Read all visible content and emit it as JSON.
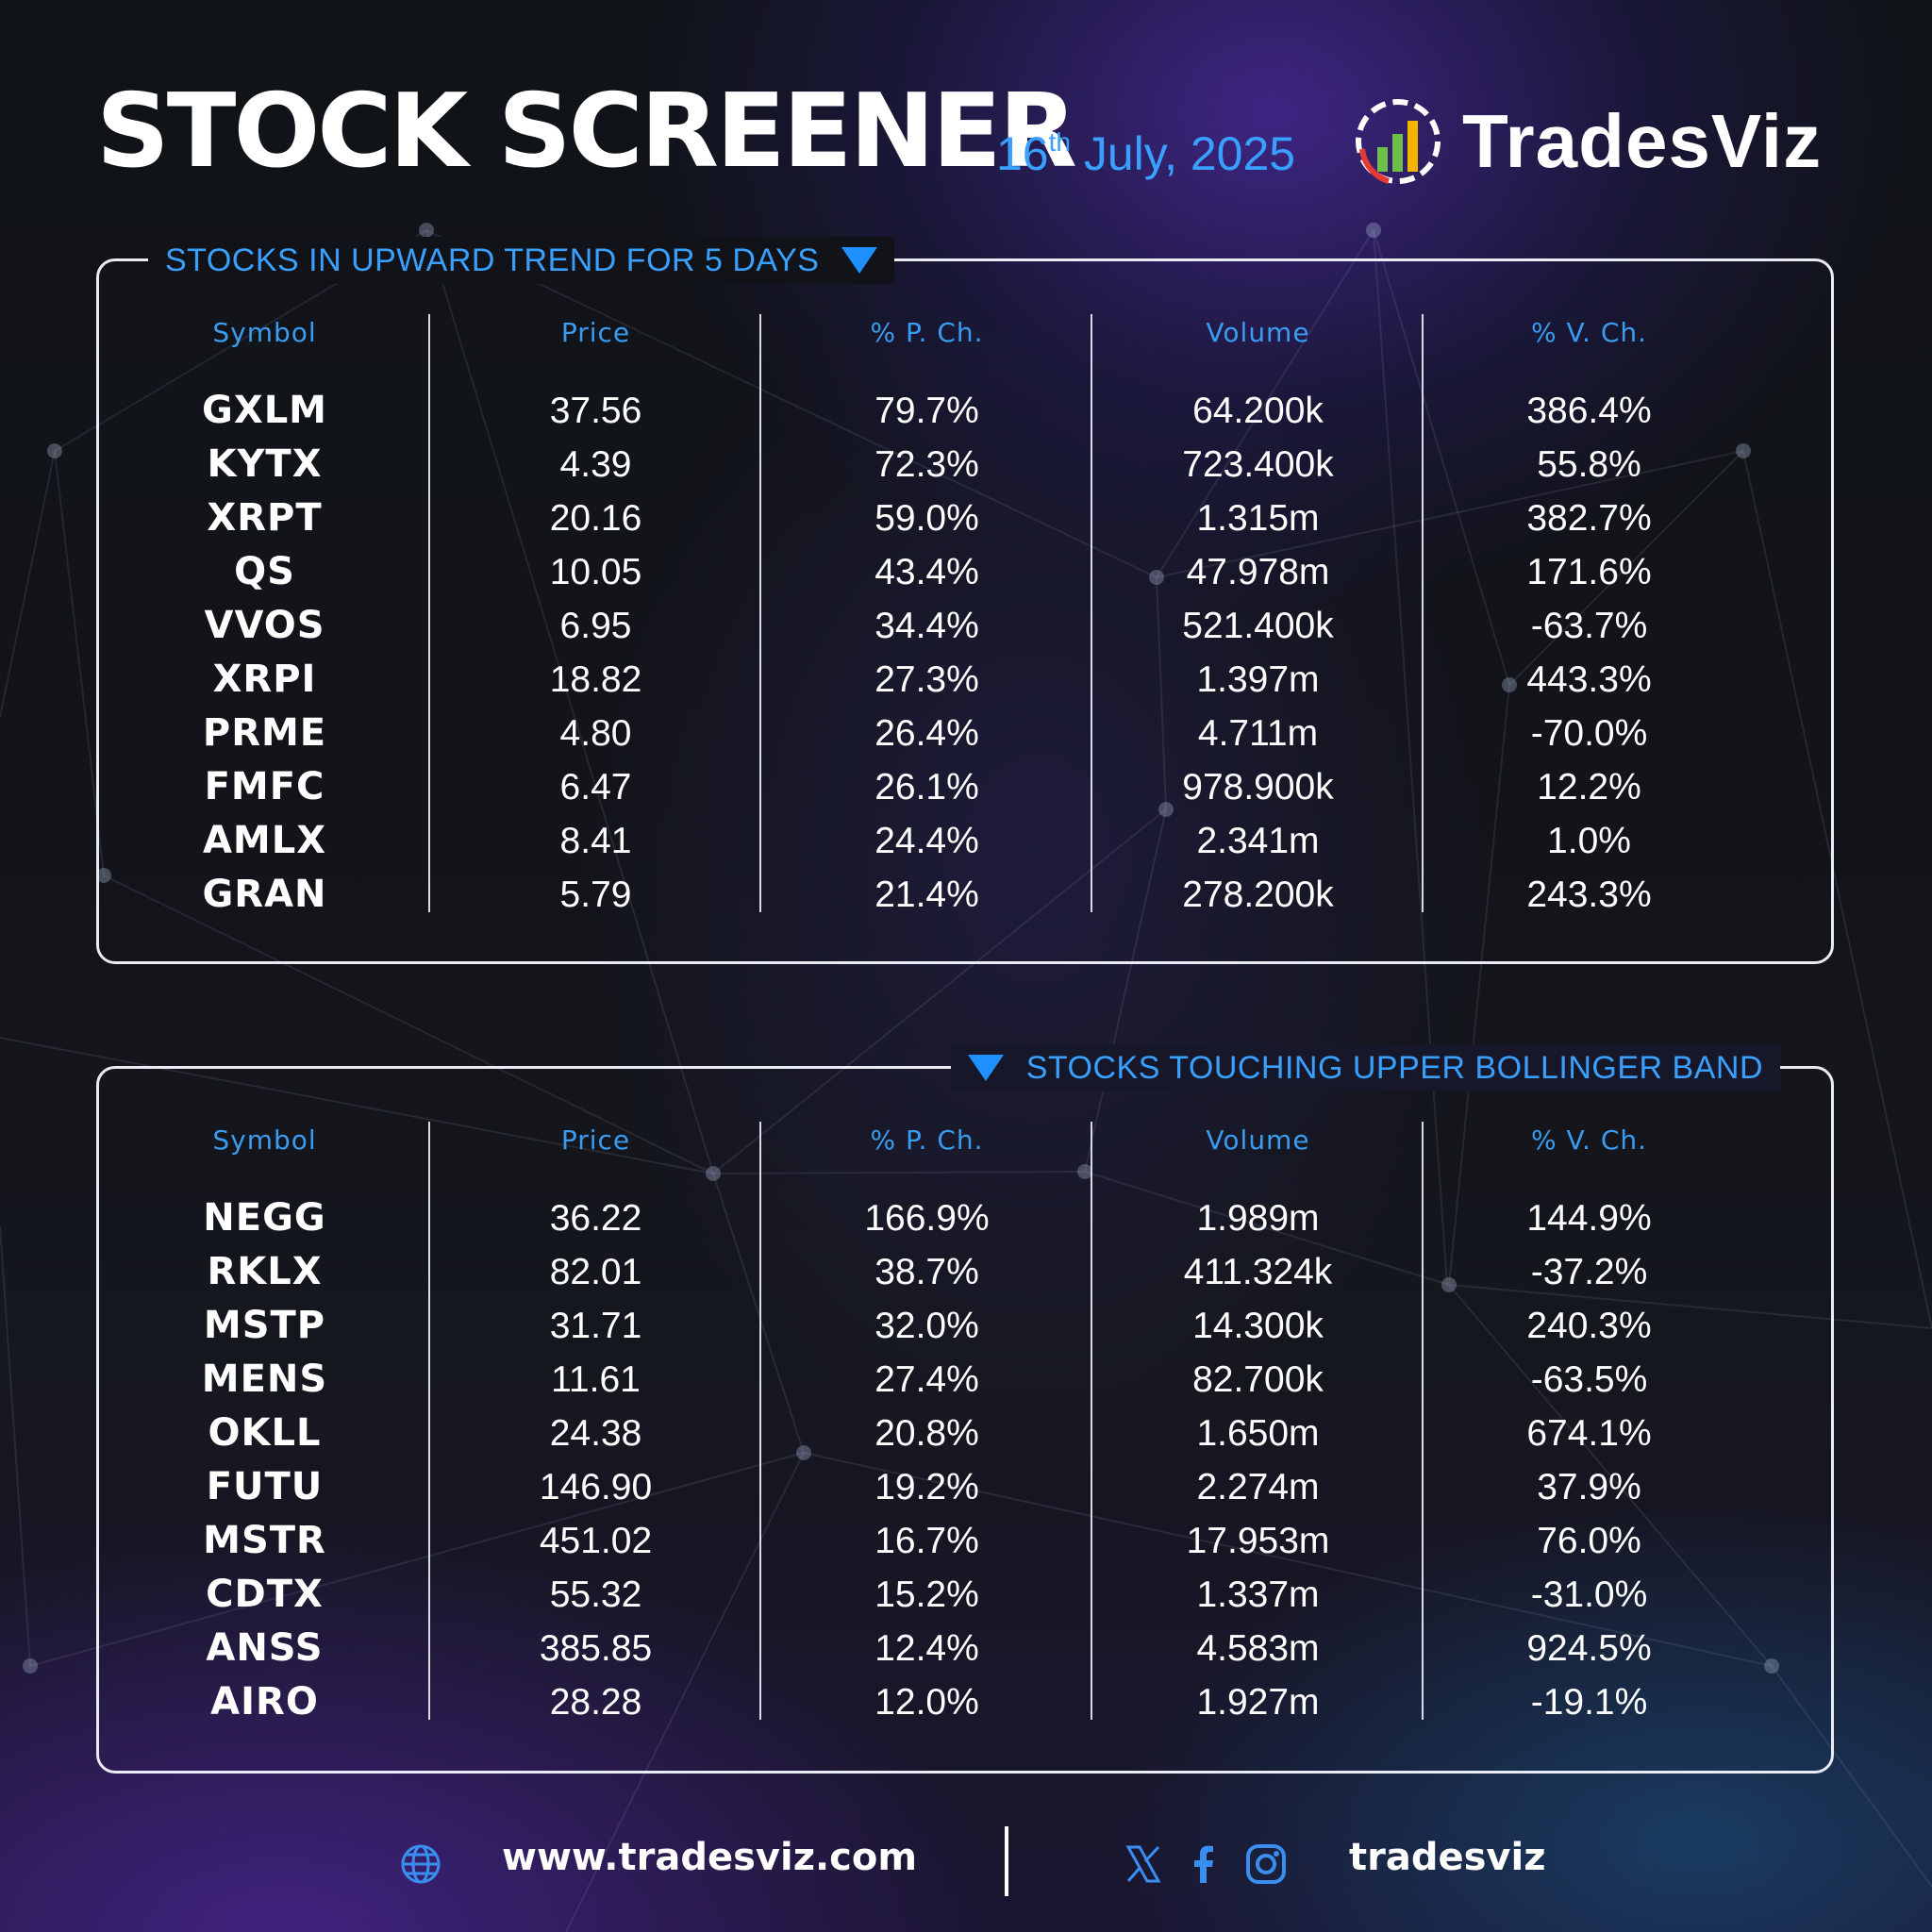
{
  "header": {
    "title": "STOCK SCREENER",
    "date_day": "16",
    "date_suffix": "th",
    "date_rest": " July, 2025",
    "brand_name": "TradesViz",
    "brand_logo_icon": "bar-chart-logo-icon"
  },
  "colors": {
    "accent": "#3aa0ff",
    "triangle": "#1e90ff",
    "text": "#ffffff",
    "panel_border": "#e9ecf4"
  },
  "columns": [
    "Symbol",
    "Price",
    "% P. Ch.",
    "Volume",
    "% V. Ch."
  ],
  "upward_trend": {
    "label": "STOCKS IN UPWARD TREND FOR 5 DAYS",
    "symbols": [
      "GXLM",
      "KYTX",
      "XRPT",
      "QS",
      "VVOS",
      "XRPI",
      "PRME",
      "FMFC",
      "AMLX",
      "GRAN"
    ],
    "prices": [
      "37.56",
      "4.39",
      "20.16",
      "10.05",
      "6.95",
      "18.82",
      "4.80",
      "6.47",
      "8.41",
      "5.79"
    ],
    "price_changes": [
      "79.7%",
      "72.3%",
      "59.0%",
      "43.4%",
      "34.4%",
      "27.3%",
      "26.4%",
      "26.1%",
      "24.4%",
      "21.4%"
    ],
    "volumes": [
      "64.200k",
      "723.400k",
      "1.315m",
      "47.978m",
      "521.400k",
      "1.397m",
      "4.711m",
      "978.900k",
      "2.341m",
      "278.200k"
    ],
    "volume_changes": [
      "386.4%",
      "55.8%",
      "382.7%",
      "171.6%",
      "-63.7%",
      "443.3%",
      "-70.0%",
      "12.2%",
      "1.0%",
      "243.3%"
    ]
  },
  "bollinger": {
    "label": "STOCKS TOUCHING UPPER BOLLINGER BAND",
    "symbols": [
      "NEGG",
      "RKLX",
      "MSTP",
      "MENS",
      "OKLL",
      "FUTU",
      "MSTR",
      "CDTX",
      "ANSS",
      "AIRO"
    ],
    "prices": [
      "36.22",
      "82.01",
      "31.71",
      "11.61",
      "24.38",
      "146.90",
      "451.02",
      "55.32",
      "385.85",
      "28.28"
    ],
    "price_changes": [
      "166.9%",
      "38.7%",
      "32.0%",
      "27.4%",
      "20.8%",
      "19.2%",
      "16.7%",
      "15.2%",
      "12.4%",
      "12.0%"
    ],
    "volumes": [
      "1.989m",
      "411.324k",
      "14.300k",
      "82.700k",
      "1.650m",
      "2.274m",
      "17.953m",
      "1.337m",
      "4.583m",
      "1.927m"
    ],
    "volume_changes": [
      "144.9%",
      "-37.2%",
      "240.3%",
      "-63.5%",
      "674.1%",
      "37.9%",
      "76.0%",
      "-31.0%",
      "924.5%",
      "-19.1%"
    ]
  },
  "footer": {
    "website": "www.tradesviz.com",
    "handle": "tradesviz",
    "icons": [
      "globe-icon",
      "x-icon",
      "facebook-icon",
      "instagram-icon"
    ]
  }
}
